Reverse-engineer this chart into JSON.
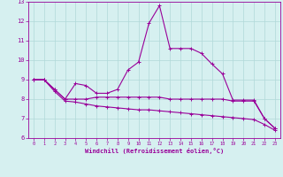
{
  "xlabel": "Windchill (Refroidissement éolien,°C)",
  "bg_color": "#d6f0f0",
  "grid_color": "#b0d8d8",
  "line_color": "#990099",
  "x": [
    0,
    1,
    2,
    3,
    4,
    5,
    6,
    7,
    8,
    9,
    10,
    11,
    12,
    13,
    14,
    15,
    16,
    17,
    18,
    19,
    20,
    21,
    22,
    23
  ],
  "line1": [
    9.0,
    9.0,
    8.5,
    8.0,
    8.8,
    8.7,
    8.3,
    8.3,
    8.5,
    9.5,
    9.9,
    11.9,
    12.8,
    10.6,
    10.6,
    10.6,
    10.35,
    9.8,
    9.3,
    7.95,
    7.95,
    7.95,
    7.0,
    6.5
  ],
  "line2": [
    9.0,
    9.0,
    8.5,
    8.0,
    8.0,
    8.0,
    8.1,
    8.1,
    8.1,
    8.1,
    8.1,
    8.1,
    8.1,
    8.0,
    8.0,
    8.0,
    8.0,
    8.0,
    8.0,
    7.9,
    7.9,
    7.9,
    7.0,
    6.5
  ],
  "line3": [
    9.0,
    9.0,
    8.4,
    7.9,
    7.85,
    7.75,
    7.65,
    7.6,
    7.55,
    7.5,
    7.45,
    7.45,
    7.4,
    7.35,
    7.3,
    7.25,
    7.2,
    7.15,
    7.1,
    7.05,
    7.0,
    6.95,
    6.7,
    6.4
  ],
  "xlim": [
    -0.5,
    23.5
  ],
  "ylim": [
    6,
    13
  ],
  "yticks": [
    6,
    7,
    8,
    9,
    10,
    11,
    12,
    13
  ],
  "xticks": [
    0,
    1,
    2,
    3,
    4,
    5,
    6,
    7,
    8,
    9,
    10,
    11,
    12,
    13,
    14,
    15,
    16,
    17,
    18,
    19,
    20,
    21,
    22,
    23
  ],
  "lw": 0.8,
  "marker_size": 3.0
}
